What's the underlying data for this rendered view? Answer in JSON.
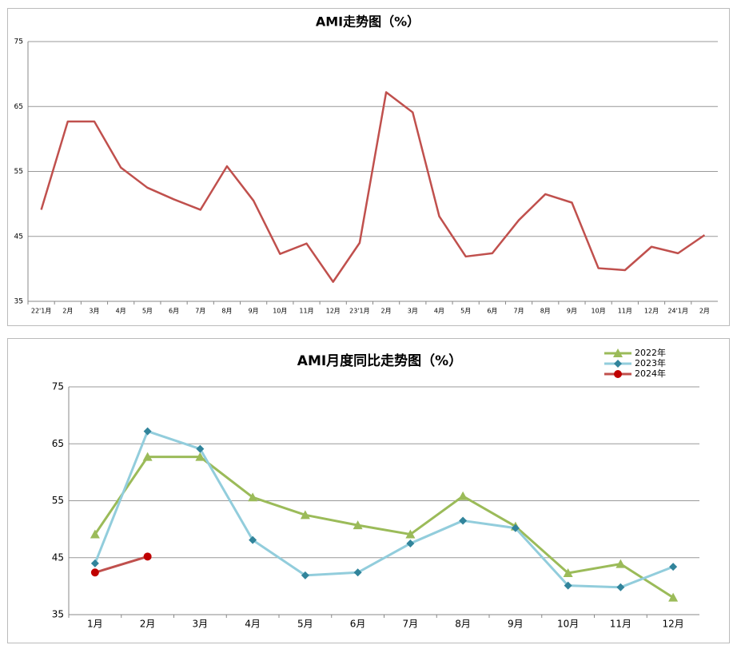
{
  "chart_data": [
    {
      "type": "line",
      "title": "AMI走势图（%）",
      "categories": [
        "22'1月",
        "2月",
        "3月",
        "4月",
        "5月",
        "6月",
        "7月",
        "8月",
        "9月",
        "10月",
        "11月",
        "12月",
        "23'1月",
        "2月",
        "3月",
        "4月",
        "5月",
        "6月",
        "7月",
        "8月",
        "9月",
        "10月",
        "11月",
        "12月",
        "24'1月",
        "2月"
      ],
      "series": [
        {
          "color": "#c0504d",
          "values": [
            49.1,
            62.7,
            62.7,
            55.6,
            52.5,
            50.7,
            49.1,
            55.8,
            50.5,
            42.3,
            43.9,
            38.0,
            44.0,
            67.2,
            64.1,
            48.1,
            41.9,
            42.4,
            47.5,
            51.5,
            50.2,
            40.1,
            39.8,
            43.4,
            42.4,
            45.2
          ]
        }
      ],
      "ylim": [
        35,
        75
      ],
      "yticks": [
        35,
        45,
        55,
        65,
        75
      ],
      "grid": true
    },
    {
      "type": "line",
      "title": "AMI月度同比走势图（%）",
      "categories": [
        "1月",
        "2月",
        "3月",
        "4月",
        "5月",
        "6月",
        "7月",
        "8月",
        "9月",
        "10月",
        "11月",
        "12月"
      ],
      "series": [
        {
          "name": "2022年",
          "color": "#9bbb59",
          "marker": "triangle",
          "marker_color": "#9bbb59",
          "values": [
            49.1,
            62.7,
            62.7,
            55.6,
            52.5,
            50.7,
            49.1,
            55.8,
            50.5,
            42.3,
            43.9,
            38.0
          ]
        },
        {
          "name": "2023年",
          "color": "#92cddc",
          "marker": "diamond",
          "marker_color": "#31849b",
          "values": [
            44.0,
            67.2,
            64.1,
            48.1,
            41.9,
            42.4,
            47.5,
            51.5,
            50.2,
            40.1,
            39.8,
            43.4
          ]
        },
        {
          "name": "2024年",
          "color": "#c0504d",
          "marker": "circle",
          "marker_color": "#c00000",
          "values": [
            42.4,
            45.2,
            null,
            null,
            null,
            null,
            null,
            null,
            null,
            null,
            null,
            null
          ]
        }
      ],
      "ylim": [
        35,
        75
      ],
      "yticks": [
        35,
        45,
        55,
        65,
        75
      ],
      "grid": true,
      "legend": "top-right"
    }
  ]
}
